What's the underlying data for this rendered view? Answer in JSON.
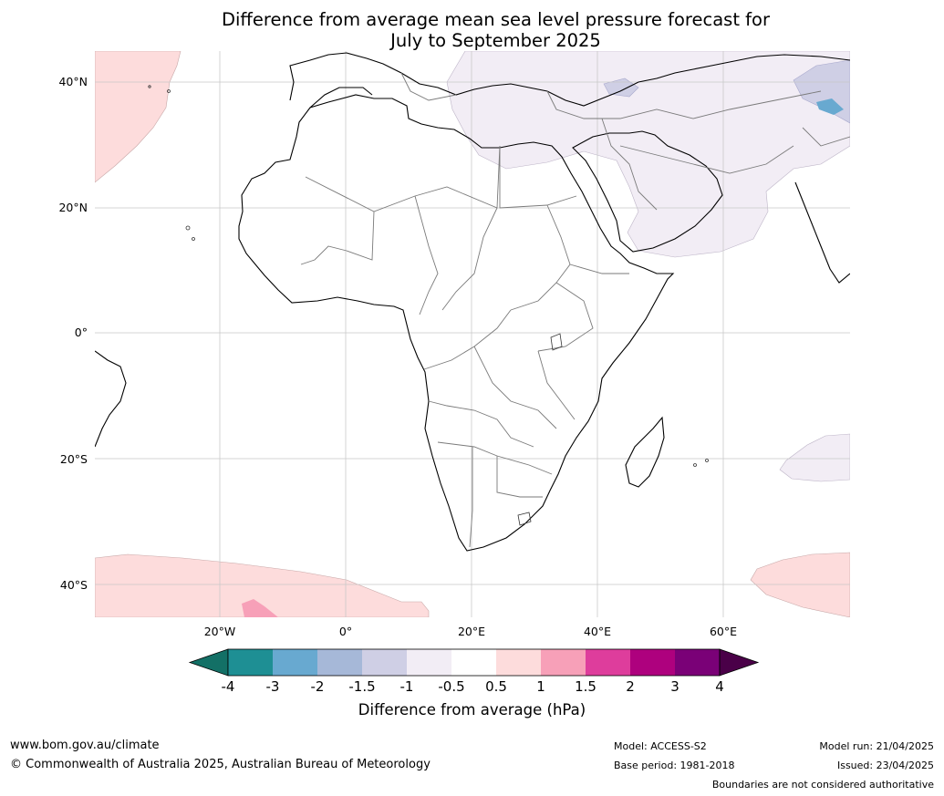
{
  "title": {
    "line1": "Difference from average mean sea level pressure forecast for",
    "line2": "July to September 2025"
  },
  "axes": {
    "lat_labels": [
      "40°N",
      "20°N",
      "0°",
      "20°S",
      "40°S"
    ],
    "lon_labels": [
      "20°W",
      "0°",
      "20°E",
      "40°E",
      "60°E"
    ]
  },
  "colorbar": {
    "labels": [
      "-4",
      "-3",
      "-2",
      "-1.5",
      "-1",
      "-0.5",
      "0.5",
      "1",
      "1.5",
      "2",
      "3",
      "4"
    ],
    "colors": [
      "#137066",
      "#1e8f94",
      "#68a9d0",
      "#a6b8d8",
      "#cfcfe5",
      "#f2edf5",
      "#ffffff",
      "#fddcdc",
      "#f7a0b8",
      "#de3d9c",
      "#ae017e",
      "#7a0177",
      "#4a0048"
    ],
    "title": "Difference from average (hPa)"
  },
  "footer": {
    "website": "www.bom.gov.au/climate",
    "copyright": "© Commonwealth of Australia 2025, Australian Bureau of Meteorology",
    "model": "Model: ACCESS-S2",
    "base_period": "Base period: 1981-2018",
    "model_run": "Model run: 21/04/2025",
    "issued": "Issued: 23/04/2025",
    "disclaimer": "Boundaries are not considered authoritative"
  }
}
